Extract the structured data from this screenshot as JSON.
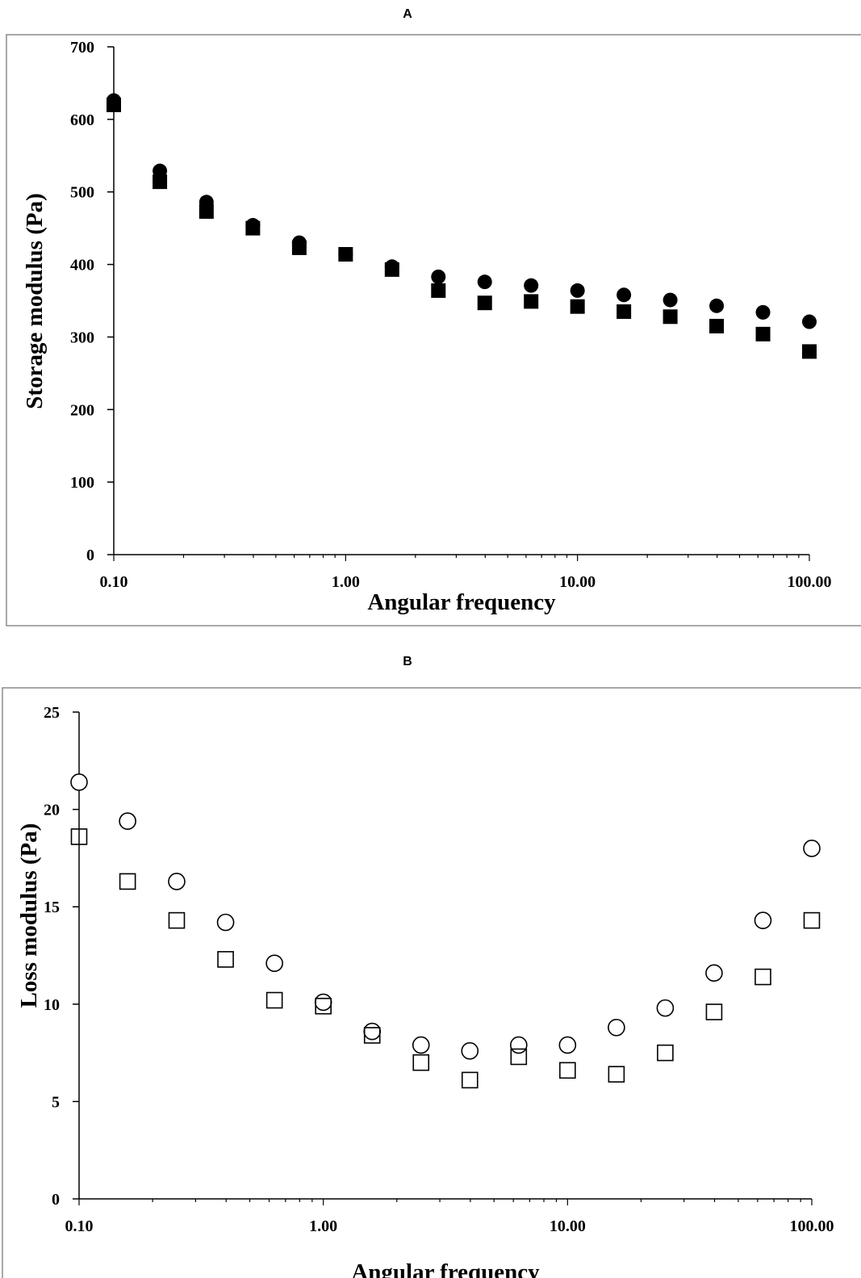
{
  "chart_data": [
    {
      "panel": "A",
      "type": "scatter",
      "xlabel": "Angular frequency",
      "ylabel": "Storage modulus (Pa)",
      "x_scale": "log",
      "xlim": [
        0.1,
        100
      ],
      "ylim": [
        0,
        700
      ],
      "x_ticks": [
        "0.10",
        "1.00",
        "10.00",
        "100.00"
      ],
      "y_ticks": [
        "0",
        "100",
        "200",
        "300",
        "400",
        "500",
        "600",
        "700"
      ],
      "grid": false,
      "series": [
        {
          "marker": "filled-circle",
          "x": [
            0.1,
            0.158,
            0.251,
            0.398,
            0.631,
            1.0,
            1.585,
            2.512,
            3.981,
            6.31,
            10.0,
            15.85,
            25.12,
            39.81,
            63.1,
            100.0
          ],
          "y": [
            626,
            529,
            486,
            454,
            430,
            414,
            397,
            383,
            376,
            371,
            364,
            358,
            351,
            343,
            334,
            321
          ]
        },
        {
          "marker": "filled-square",
          "x": [
            0.1,
            0.158,
            0.251,
            0.398,
            0.631,
            1.0,
            1.585,
            2.512,
            3.981,
            6.31,
            10.0,
            15.85,
            25.12,
            39.81,
            63.1,
            100.0
          ],
          "y": [
            620,
            514,
            473,
            450,
            423,
            414,
            393,
            364,
            347,
            349,
            342,
            335,
            328,
            315,
            304,
            280
          ]
        }
      ]
    },
    {
      "panel": "B",
      "type": "scatter",
      "xlabel": "Angular frequency",
      "ylabel": "Loss modulus (Pa)",
      "x_scale": "log",
      "xlim": [
        0.1,
        100
      ],
      "ylim": [
        0,
        25
      ],
      "x_ticks": [
        "0.10",
        "1.00",
        "10.00",
        "100.00"
      ],
      "y_ticks": [
        "0",
        "5",
        "10",
        "15",
        "20",
        "25"
      ],
      "grid": false,
      "series": [
        {
          "marker": "open-circle",
          "x": [
            0.1,
            0.158,
            0.251,
            0.398,
            0.631,
            1.0,
            1.585,
            2.512,
            3.981,
            6.31,
            10.0,
            15.85,
            25.12,
            39.81,
            63.1,
            100.0
          ],
          "y": [
            21.4,
            19.4,
            16.3,
            14.2,
            12.1,
            10.1,
            8.6,
            7.9,
            7.6,
            7.9,
            7.9,
            8.8,
            9.8,
            11.6,
            14.3,
            18.0
          ]
        },
        {
          "marker": "open-square",
          "x": [
            0.1,
            0.158,
            0.251,
            0.398,
            0.631,
            1.0,
            1.585,
            2.512,
            3.981,
            6.31,
            10.0,
            15.85,
            25.12,
            39.81,
            63.1,
            100.0
          ],
          "y": [
            18.6,
            16.3,
            14.3,
            12.3,
            10.2,
            9.9,
            8.4,
            7.0,
            6.1,
            7.3,
            6.6,
            6.4,
            7.5,
            9.6,
            11.4,
            14.3
          ]
        }
      ]
    }
  ]
}
